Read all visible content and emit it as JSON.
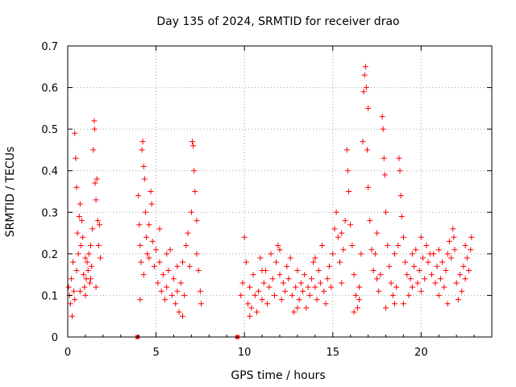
{
  "chart_data": {
    "type": "scatter",
    "title": "Day 135 of 2024, SRMTID for receiver drao",
    "xlabel": "GPS time / hours",
    "ylabel": "SRMTID / TECUs",
    "xlim": [
      0,
      24
    ],
    "ylim": [
      0,
      0.7
    ],
    "xticks": [
      0,
      5,
      10,
      15,
      20
    ],
    "xtick_labels": [
      "0",
      "5",
      "10",
      "15",
      "20"
    ],
    "yticks": [
      0,
      0.1,
      0.2,
      0.3,
      0.4,
      0.5,
      0.6,
      0.7
    ],
    "ytick_labels": [
      "0",
      "0.1",
      "0.2",
      "0.3",
      "0.4",
      "0.5",
      "0.6",
      "0.7"
    ],
    "grid": true,
    "marker": "plus",
    "color": "#ff0000",
    "series": [
      {
        "name": "SRMTID",
        "points": [
          [
            0.05,
            0.12
          ],
          [
            0.1,
            0.1
          ],
          [
            0.15,
            0.08
          ],
          [
            0.2,
            0.14
          ],
          [
            0.25,
            0.05
          ],
          [
            0.3,
            0.18
          ],
          [
            0.35,
            0.11
          ],
          [
            0.4,
            0.49
          ],
          [
            0.45,
            0.43
          ],
          [
            0.5,
            0.36
          ],
          [
            0.55,
            0.25
          ],
          [
            0.6,
            0.2
          ],
          [
            0.65,
            0.29
          ],
          [
            0.7,
            0.32
          ],
          [
            0.75,
            0.22
          ],
          [
            0.8,
            0.28
          ],
          [
            0.85,
            0.24
          ],
          [
            0.9,
            0.15
          ],
          [
            0.95,
            0.12
          ],
          [
            1.0,
            0.1
          ],
          [
            1.05,
            0.14
          ],
          [
            1.1,
            0.18
          ],
          [
            1.15,
            0.16
          ],
          [
            1.2,
            0.2
          ],
          [
            1.25,
            0.13
          ],
          [
            1.3,
            0.22
          ],
          [
            1.35,
            0.17
          ],
          [
            1.4,
            0.26
          ],
          [
            1.45,
            0.45
          ],
          [
            1.5,
            0.52
          ],
          [
            1.52,
            0.5
          ],
          [
            1.55,
            0.37
          ],
          [
            1.6,
            0.33
          ],
          [
            1.65,
            0.38
          ],
          [
            1.7,
            0.28
          ],
          [
            1.75,
            0.22
          ],
          [
            1.8,
            0.27
          ],
          [
            1.85,
            0.19
          ],
          [
            0.4,
            0.09
          ],
          [
            0.5,
            0.16
          ],
          [
            0.7,
            0.11
          ],
          [
            1.0,
            0.19
          ],
          [
            1.3,
            0.14
          ],
          [
            1.6,
            0.12
          ],
          [
            4.0,
            0.34
          ],
          [
            4.05,
            0.27
          ],
          [
            4.1,
            0.22
          ],
          [
            4.15,
            0.18
          ],
          [
            4.2,
            0.45
          ],
          [
            4.25,
            0.47
          ],
          [
            4.3,
            0.41
          ],
          [
            4.35,
            0.38
          ],
          [
            4.4,
            0.3
          ],
          [
            4.45,
            0.24
          ],
          [
            4.5,
            0.2
          ],
          [
            4.6,
            0.27
          ],
          [
            4.7,
            0.35
          ],
          [
            4.75,
            0.32
          ],
          [
            4.8,
            0.23
          ],
          [
            4.9,
            0.17
          ],
          [
            5.0,
            0.21
          ],
          [
            5.1,
            0.13
          ],
          [
            5.2,
            0.18
          ],
          [
            5.3,
            0.11
          ],
          [
            5.4,
            0.15
          ],
          [
            5.5,
            0.09
          ],
          [
            5.6,
            0.12
          ],
          [
            5.7,
            0.16
          ],
          [
            5.8,
            0.21
          ],
          [
            5.9,
            0.1
          ],
          [
            6.0,
            0.14
          ],
          [
            6.1,
            0.08
          ],
          [
            6.2,
            0.11
          ],
          [
            6.3,
            0.06
          ],
          [
            6.4,
            0.13
          ],
          [
            6.5,
            0.18
          ],
          [
            6.6,
            0.1
          ],
          [
            6.7,
            0.22
          ],
          [
            6.8,
            0.25
          ],
          [
            6.9,
            0.17
          ],
          [
            7.0,
            0.3
          ],
          [
            7.05,
            0.47
          ],
          [
            7.1,
            0.46
          ],
          [
            7.15,
            0.4
          ],
          [
            7.2,
            0.35
          ],
          [
            7.3,
            0.2
          ],
          [
            7.4,
            0.16
          ],
          [
            7.5,
            0.11
          ],
          [
            7.55,
            0.08
          ],
          [
            4.1,
            0.09
          ],
          [
            4.3,
            0.15
          ],
          [
            4.6,
            0.19
          ],
          [
            5.2,
            0.26
          ],
          [
            5.6,
            0.2
          ],
          [
            6.2,
            0.17
          ],
          [
            6.5,
            0.05
          ],
          [
            7.3,
            0.28
          ],
          [
            9.8,
            0.1
          ],
          [
            9.9,
            0.13
          ],
          [
            10.0,
            0.24
          ],
          [
            10.1,
            0.18
          ],
          [
            10.2,
            0.08
          ],
          [
            10.3,
            0.12
          ],
          [
            10.4,
            0.07
          ],
          [
            10.5,
            0.15
          ],
          [
            10.6,
            0.1
          ],
          [
            10.7,
            0.06
          ],
          [
            10.8,
            0.11
          ],
          [
            10.9,
            0.19
          ],
          [
            11.0,
            0.09
          ],
          [
            11.1,
            0.13
          ],
          [
            11.2,
            0.16
          ],
          [
            11.3,
            0.08
          ],
          [
            11.4,
            0.12
          ],
          [
            11.5,
            0.2
          ],
          [
            11.6,
            0.14
          ],
          [
            11.7,
            0.1
          ],
          [
            11.8,
            0.18
          ],
          [
            11.9,
            0.22
          ],
          [
            12.0,
            0.15
          ],
          [
            12.1,
            0.09
          ],
          [
            12.2,
            0.13
          ],
          [
            12.3,
            0.11
          ],
          [
            12.4,
            0.17
          ],
          [
            12.5,
            0.14
          ],
          [
            12.6,
            0.19
          ],
          [
            12.7,
            0.1
          ],
          [
            12.8,
            0.06
          ],
          [
            12.9,
            0.12
          ],
          [
            13.0,
            0.16
          ],
          [
            13.1,
            0.09
          ],
          [
            13.2,
            0.13
          ],
          [
            13.3,
            0.11
          ],
          [
            13.4,
            0.15
          ],
          [
            13.5,
            0.07
          ],
          [
            13.6,
            0.12
          ],
          [
            13.7,
            0.1
          ],
          [
            13.8,
            0.14
          ],
          [
            13.9,
            0.18
          ],
          [
            14.0,
            0.12
          ],
          [
            14.1,
            0.09
          ],
          [
            14.2,
            0.16
          ],
          [
            14.3,
            0.13
          ],
          [
            14.4,
            0.22
          ],
          [
            14.5,
            0.11
          ],
          [
            14.6,
            0.08
          ],
          [
            14.7,
            0.14
          ],
          [
            14.8,
            0.17
          ],
          [
            14.9,
            0.12
          ],
          [
            10.3,
            0.05
          ],
          [
            11.0,
            0.16
          ],
          [
            12.0,
            0.21
          ],
          [
            13.0,
            0.07
          ],
          [
            14.0,
            0.19
          ],
          [
            15.0,
            0.2
          ],
          [
            15.1,
            0.26
          ],
          [
            15.2,
            0.3
          ],
          [
            15.3,
            0.24
          ],
          [
            15.4,
            0.18
          ],
          [
            15.5,
            0.13
          ],
          [
            15.6,
            0.21
          ],
          [
            15.7,
            0.28
          ],
          [
            15.8,
            0.45
          ],
          [
            15.85,
            0.4
          ],
          [
            15.9,
            0.35
          ],
          [
            16.0,
            0.27
          ],
          [
            16.1,
            0.22
          ],
          [
            16.2,
            0.15
          ],
          [
            16.3,
            0.1
          ],
          [
            16.4,
            0.07
          ],
          [
            16.5,
            0.12
          ],
          [
            16.6,
            0.2
          ],
          [
            16.7,
            0.47
          ],
          [
            16.75,
            0.59
          ],
          [
            16.8,
            0.63
          ],
          [
            16.85,
            0.65
          ],
          [
            16.9,
            0.6
          ],
          [
            16.95,
            0.45
          ],
          [
            17.0,
            0.36
          ],
          [
            17.1,
            0.28
          ],
          [
            17.2,
            0.21
          ],
          [
            17.3,
            0.16
          ],
          [
            17.4,
            0.2
          ],
          [
            17.5,
            0.14
          ],
          [
            17.6,
            0.11
          ],
          [
            17.7,
            0.15
          ],
          [
            17.8,
            0.53
          ],
          [
            17.85,
            0.5
          ],
          [
            17.9,
            0.43
          ],
          [
            17.95,
            0.39
          ],
          [
            18.0,
            0.3
          ],
          [
            18.1,
            0.22
          ],
          [
            18.2,
            0.17
          ],
          [
            18.3,
            0.13
          ],
          [
            18.4,
            0.1
          ],
          [
            18.5,
            0.08
          ],
          [
            18.6,
            0.12
          ],
          [
            18.7,
            0.22
          ],
          [
            18.75,
            0.43
          ],
          [
            18.8,
            0.4
          ],
          [
            18.85,
            0.34
          ],
          [
            18.9,
            0.29
          ],
          [
            19.0,
            0.24
          ],
          [
            19.1,
            0.18
          ],
          [
            19.2,
            0.15
          ],
          [
            19.3,
            0.1
          ],
          [
            19.4,
            0.14
          ],
          [
            19.5,
            0.12
          ],
          [
            19.6,
            0.17
          ],
          [
            19.7,
            0.21
          ],
          [
            19.8,
            0.13
          ],
          [
            19.9,
            0.16
          ],
          [
            20.0,
            0.11
          ],
          [
            20.1,
            0.19
          ],
          [
            20.2,
            0.14
          ],
          [
            20.3,
            0.22
          ],
          [
            20.4,
            0.18
          ],
          [
            20.5,
            0.2
          ],
          [
            20.6,
            0.15
          ],
          [
            20.7,
            0.2
          ],
          [
            20.8,
            0.13
          ],
          [
            20.9,
            0.17
          ],
          [
            21.0,
            0.1
          ],
          [
            21.1,
            0.14
          ],
          [
            21.2,
            0.18
          ],
          [
            21.3,
            0.12
          ],
          [
            21.4,
            0.16
          ],
          [
            21.5,
            0.2
          ],
          [
            21.6,
            0.23
          ],
          [
            21.7,
            0.19
          ],
          [
            21.8,
            0.26
          ],
          [
            21.85,
            0.24
          ],
          [
            21.9,
            0.21
          ],
          [
            22.0,
            0.13
          ],
          [
            22.1,
            0.09
          ],
          [
            22.2,
            0.15
          ],
          [
            22.3,
            0.11
          ],
          [
            22.4,
            0.17
          ],
          [
            22.5,
            0.14
          ],
          [
            22.6,
            0.19
          ],
          [
            22.7,
            0.16
          ],
          [
            22.8,
            0.21
          ],
          [
            22.85,
            0.24
          ],
          [
            15.5,
            0.25
          ],
          [
            16.2,
            0.06
          ],
          [
            16.5,
            0.09
          ],
          [
            17.0,
            0.55
          ],
          [
            17.5,
            0.25
          ],
          [
            18.0,
            0.07
          ],
          [
            18.5,
            0.2
          ],
          [
            19.0,
            0.08
          ],
          [
            19.5,
            0.2
          ],
          [
            20.0,
            0.24
          ],
          [
            21.0,
            0.21
          ],
          [
            21.5,
            0.08
          ],
          [
            22.5,
            0.22
          ]
        ]
      }
    ],
    "gap_markers": [
      [
        3.95,
        0
      ],
      [
        9.6,
        0
      ]
    ]
  }
}
